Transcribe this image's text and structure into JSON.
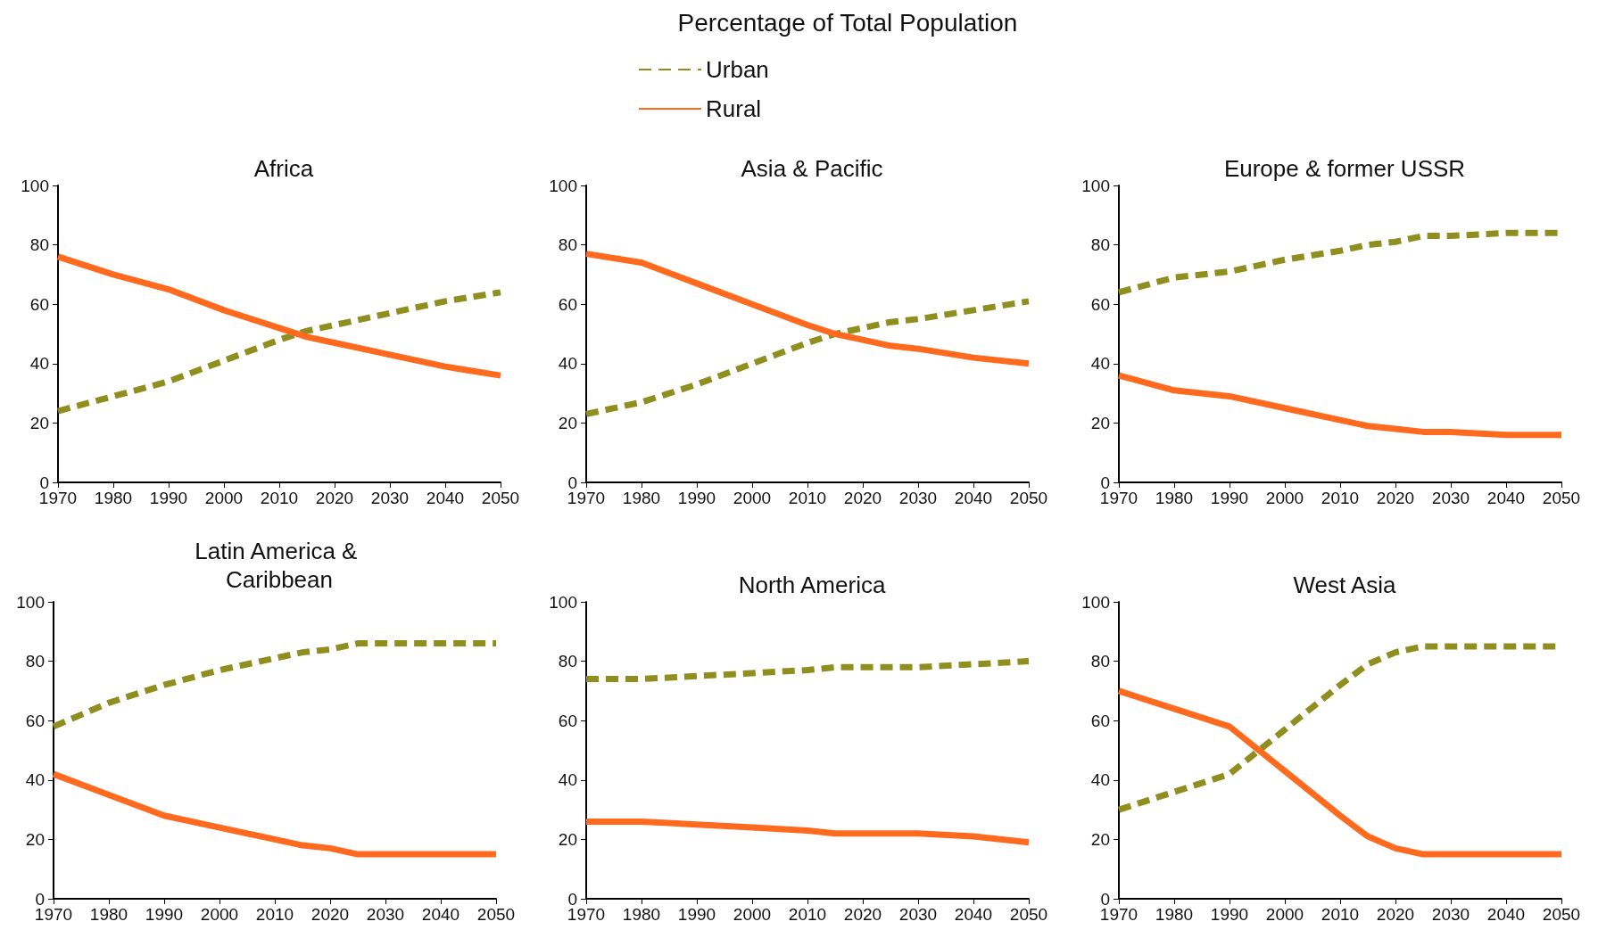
{
  "chart_data": [
    {
      "type": "other",
      "title": "Percentage of Total Population"
    },
    {
      "type": "line",
      "title": "Africa",
      "legend": "top",
      "marker": "none",
      "grid": false,
      "x": [
        1970,
        1980,
        1990,
        2000,
        2010,
        2015,
        2020,
        2025,
        2030,
        2040,
        2050
      ],
      "xlim": [
        1970,
        2050
      ],
      "xticks": [
        1970,
        1980,
        1990,
        2000,
        2010,
        2020,
        2030,
        2040,
        2050
      ],
      "ylim": [
        0,
        100
      ],
      "yticks": [
        0,
        20,
        40,
        60,
        80,
        100
      ],
      "series": [
        {
          "name": "Urban",
          "color": "#8f8f1f",
          "line_style": "dashed",
          "values": [
            24,
            29,
            34,
            41,
            48,
            51,
            53,
            55,
            57,
            61,
            64
          ]
        },
        {
          "name": "Rural",
          "color": "#ff6a1f",
          "line_style": "solid",
          "values": [
            76,
            70,
            65,
            58,
            52,
            49,
            47,
            45,
            43,
            39,
            36
          ]
        }
      ]
    },
    {
      "type": "line",
      "title": "Asia & Pacific",
      "legend": false,
      "marker": "none",
      "grid": false,
      "x": [
        1970,
        1980,
        1990,
        2000,
        2010,
        2015,
        2020,
        2025,
        2030,
        2040,
        2050
      ],
      "xlim": [
        1970,
        2050
      ],
      "xticks": [
        1970,
        1980,
        1990,
        2000,
        2010,
        2020,
        2030,
        2040,
        2050
      ],
      "ylim": [
        0,
        100
      ],
      "yticks": [
        0,
        20,
        40,
        60,
        80,
        100
      ],
      "series": [
        {
          "color": "#8f8f1f",
          "line_style": "dashed",
          "values": [
            23,
            27,
            33,
            40,
            47,
            50,
            52,
            54,
            55,
            58,
            61
          ]
        },
        {
          "color": "#ff6a1f",
          "line_style": "solid",
          "values": [
            77,
            74,
            67,
            60,
            53,
            50,
            48,
            46,
            45,
            42,
            40
          ]
        }
      ]
    },
    {
      "type": "line",
      "title": "Europe & former USSR",
      "legend": false,
      "marker": "none",
      "grid": false,
      "x": [
        1970,
        1980,
        1990,
        2000,
        2010,
        2015,
        2020,
        2025,
        2030,
        2040,
        2050
      ],
      "xlim": [
        1970,
        2050
      ],
      "xticks": [
        1970,
        1980,
        1990,
        2000,
        2010,
        2020,
        2030,
        2040,
        2050
      ],
      "ylim": [
        0,
        100
      ],
      "yticks": [
        0,
        20,
        40,
        60,
        80,
        100
      ],
      "series": [
        {
          "color": "#8f8f1f",
          "line_style": "dashed",
          "values": [
            64,
            69,
            71,
            75,
            78,
            80,
            81,
            83,
            83,
            84,
            84
          ]
        },
        {
          "color": "#ff6a1f",
          "line_style": "solid",
          "values": [
            36,
            31,
            29,
            25,
            21,
            19,
            18,
            17,
            17,
            16,
            16
          ]
        }
      ]
    },
    {
      "type": "line",
      "title": "Latin America & Caribbean",
      "legend": false,
      "marker": "none",
      "grid": false,
      "x": [
        1970,
        1980,
        1990,
        2000,
        2010,
        2015,
        2020,
        2025,
        2030,
        2040,
        2050
      ],
      "xlim": [
        1970,
        2050
      ],
      "xticks": [
        1970,
        1980,
        1990,
        2000,
        2010,
        2020,
        2030,
        2040,
        2050
      ],
      "ylim": [
        0,
        100
      ],
      "yticks": [
        0,
        20,
        40,
        60,
        80,
        100
      ],
      "series": [
        {
          "color": "#8f8f1f",
          "line_style": "dashed",
          "values": [
            58,
            66,
            72,
            77,
            81,
            83,
            84,
            86,
            86,
            86,
            86
          ]
        },
        {
          "color": "#ff6a1f",
          "line_style": "solid",
          "values": [
            42,
            35,
            28,
            24,
            20,
            18,
            17,
            15,
            15,
            15,
            15
          ]
        }
      ]
    },
    {
      "type": "line",
      "title": "North America",
      "legend": false,
      "marker": "none",
      "grid": false,
      "x": [
        1970,
        1980,
        1990,
        2000,
        2010,
        2015,
        2020,
        2025,
        2030,
        2040,
        2050
      ],
      "xlim": [
        1970,
        2050
      ],
      "xticks": [
        1970,
        1980,
        1990,
        2000,
        2010,
        2020,
        2030,
        2040,
        2050
      ],
      "ylim": [
        0,
        100
      ],
      "yticks": [
        0,
        20,
        40,
        60,
        80,
        100
      ],
      "series": [
        {
          "color": "#8f8f1f",
          "line_style": "dashed",
          "values": [
            74,
            74,
            75,
            76,
            77,
            78,
            78,
            78,
            78,
            79,
            80
          ]
        },
        {
          "color": "#ff6a1f",
          "line_style": "solid",
          "values": [
            26,
            26,
            25,
            24,
            23,
            22,
            22,
            22,
            22,
            21,
            19
          ]
        }
      ]
    },
    {
      "type": "line",
      "title": "West Asia",
      "legend": false,
      "marker": "none",
      "grid": false,
      "x": [
        1970,
        1980,
        1990,
        2000,
        2010,
        2015,
        2020,
        2025,
        2030,
        2040,
        2050
      ],
      "xlim": [
        1970,
        2050
      ],
      "xticks": [
        1970,
        1980,
        1990,
        2000,
        2010,
        2020,
        2030,
        2040,
        2050
      ],
      "ylim": [
        0,
        100
      ],
      "yticks": [
        0,
        20,
        40,
        60,
        80,
        100
      ],
      "series": [
        {
          "color": "#8f8f1f",
          "line_style": "dashed",
          "values": [
            30,
            36,
            42,
            57,
            72,
            79,
            83,
            85,
            85,
            85,
            85
          ]
        },
        {
          "color": "#ff6a1f",
          "line_style": "solid",
          "values": [
            70,
            64,
            58,
            43,
            28,
            21,
            17,
            15,
            15,
            15,
            15
          ]
        }
      ]
    }
  ]
}
